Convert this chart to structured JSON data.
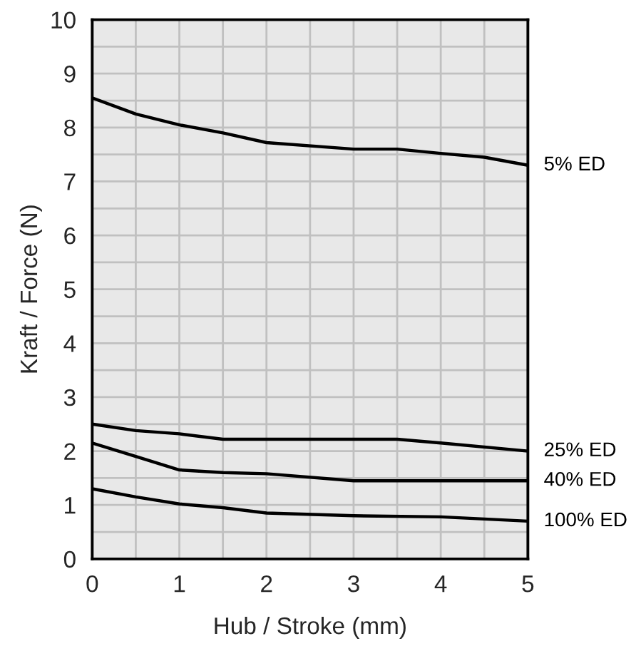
{
  "chart_data": {
    "type": "line",
    "xlabel": "Hub / Stroke (mm)",
    "ylabel": "Kraft / Force (N)",
    "xlim": [
      0,
      5
    ],
    "ylim": [
      0,
      10
    ],
    "xticks": [
      0,
      {
        "value": 0.5,
        "label": null
      },
      1,
      {
        "value": 1.5,
        "label": null
      },
      2,
      {
        "value": 2.5,
        "label": null
      },
      3,
      {
        "value": 3.5,
        "label": null
      },
      4,
      {
        "value": 4.5,
        "label": null
      },
      5
    ],
    "yticks": [
      0,
      {
        "value": 0.5,
        "label": null
      },
      1,
      {
        "value": 1.5,
        "label": null
      },
      2,
      {
        "value": 2.5,
        "label": null
      },
      3,
      {
        "value": 3.5,
        "label": null
      },
      4,
      {
        "value": 4.5,
        "label": null
      },
      5,
      {
        "value": 5.5,
        "label": null
      },
      6,
      {
        "value": 6.5,
        "label": null
      },
      7,
      {
        "value": 7.5,
        "label": null
      },
      8,
      {
        "value": 8.5,
        "label": null
      },
      9,
      {
        "value": 9.5,
        "label": null
      },
      10
    ],
    "grid": true,
    "legend": false,
    "marker": "none",
    "line_style": "solid",
    "series": [
      {
        "name": "5% ED",
        "color": "#000000",
        "x": [
          0,
          0.5,
          1,
          1.5,
          2,
          3,
          3.5,
          4,
          4.5,
          5
        ],
        "values": [
          8.55,
          8.25,
          8.05,
          7.9,
          7.72,
          7.6,
          7.6,
          7.52,
          7.45,
          7.3
        ]
      },
      {
        "name": "25% ED",
        "color": "#000000",
        "x": [
          0,
          0.5,
          1,
          1.5,
          3.5,
          4,
          5
        ],
        "values": [
          2.5,
          2.38,
          2.32,
          2.22,
          2.22,
          2.15,
          2.0
        ]
      },
      {
        "name": "40% ED",
        "color": "#000000",
        "x": [
          0,
          0.5,
          1,
          1.5,
          2,
          3,
          5
        ],
        "values": [
          2.15,
          1.9,
          1.65,
          1.6,
          1.58,
          1.45,
          1.45
        ]
      },
      {
        "name": "100% ED",
        "color": "#000000",
        "x": [
          0,
          0.5,
          1,
          1.5,
          2,
          3,
          4,
          5
        ],
        "values": [
          1.3,
          1.15,
          1.02,
          0.95,
          0.85,
          0.8,
          0.78,
          0.7
        ]
      }
    ]
  }
}
